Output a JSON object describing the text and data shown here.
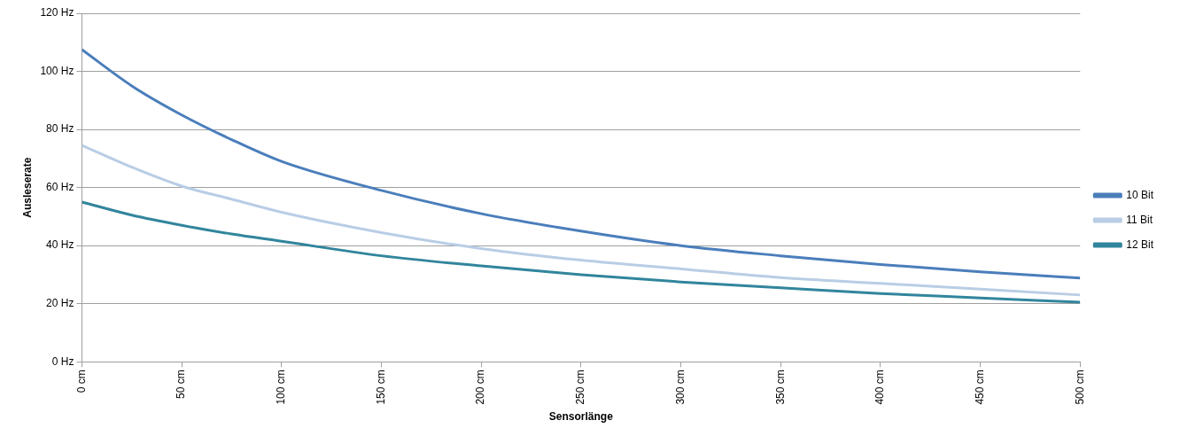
{
  "chart_data": {
    "type": "line",
    "xlabel": "Sensorlänge",
    "ylabel": "Ausleserate",
    "x": [
      0,
      25,
      50,
      75,
      100,
      150,
      200,
      250,
      300,
      350,
      400,
      450,
      500
    ],
    "series": [
      {
        "name": "10 Bit",
        "color": "#4a7ebb",
        "values": [
          107.5,
          95,
          85,
          76.5,
          69,
          59,
          51,
          45,
          40,
          36.5,
          33.5,
          31,
          28.8
        ]
      },
      {
        "name": "11 Bit",
        "color": "#b9cde5",
        "values": [
          74.5,
          67,
          60.5,
          56,
          51.5,
          44.5,
          39,
          35,
          32,
          29,
          27,
          25,
          23
        ]
      },
      {
        "name": "12 Bit",
        "color": "#31859c",
        "values": [
          55,
          50.5,
          47,
          44,
          41.5,
          36.5,
          33,
          30,
          27.5,
          25.5,
          23.5,
          22,
          20.5
        ]
      }
    ],
    "xlim": [
      0,
      500
    ],
    "xticks": [
      {
        "value": 0,
        "label": "0 cm"
      },
      {
        "value": 50,
        "label": "50 cm"
      },
      {
        "value": 100,
        "label": "100 cm"
      },
      {
        "value": 150,
        "label": "150 cm"
      },
      {
        "value": 200,
        "label": "200 cm"
      },
      {
        "value": 250,
        "label": "250 cm"
      },
      {
        "value": 300,
        "label": "300 cm"
      },
      {
        "value": 350,
        "label": "350 cm"
      },
      {
        "value": 400,
        "label": "400 cm"
      },
      {
        "value": 450,
        "label": "450 cm"
      },
      {
        "value": 500,
        "label": "500 cm"
      }
    ],
    "ylim": [
      0,
      120
    ],
    "yticks": [
      {
        "value": 0,
        "label": "0 Hz"
      },
      {
        "value": 20,
        "label": "20 Hz"
      },
      {
        "value": 40,
        "label": "40 Hz"
      },
      {
        "value": 60,
        "label": "60 Hz"
      },
      {
        "value": 80,
        "label": "80 Hz"
      },
      {
        "value": 100,
        "label": "100 Hz"
      },
      {
        "value": 120,
        "label": "120 Hz"
      }
    ],
    "grid": "y",
    "legend": "right",
    "marker": "none",
    "line_style": "solid"
  }
}
